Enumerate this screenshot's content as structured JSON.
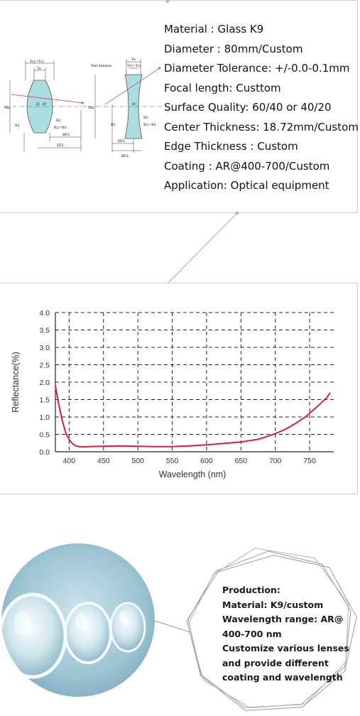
{
  "specs": [
    "Material : Glass K9",
    "Diameter : 80mm/Custom",
    "Diameter Tolerance: +/-0.0-0.1mm",
    "Focal length: Custtom",
    "Surface Quality: 60/40 or 40/20",
    "Center Thickness: 18.72mm/Custom",
    "Edge Thickness : Custom",
    "Coating : AR@400-700/Custom",
    "Application: Optical equipment"
  ],
  "diagram": {
    "labels": {
      "tc_te": "Tc(=Tc)",
      "te": "Te",
      "dia": "Dia",
      "r1": "R1",
      "r2": "R2",
      "r2_eq": "R2=R1",
      "h": "H",
      "h2": "H'",
      "bfl": "BFL",
      "efl": "EFL",
      "flat_annulus": "Flat Annulus",
      "te2": "Te",
      "tc_te2": "Tc(=Tc)",
      "dia2": "Dia",
      "r1b": "R1",
      "r2b": "R2",
      "r2_eq2": "R2=R1",
      "h2b": "H'",
      "efl2": "EFL",
      "bfl2": "BFL"
    }
  },
  "chart_data": {
    "type": "line",
    "title": "",
    "xlabel": "Wavelength (nm)",
    "ylabel": "Reflectance(%)",
    "xlim": [
      380,
      785
    ],
    "ylim": [
      0,
      4.0
    ],
    "x_ticks": [
      "400",
      "450",
      "500",
      "550",
      "600",
      "650",
      "700",
      "750"
    ],
    "y_ticks": [
      "0.0",
      "0.5",
      "1.0",
      "1.5",
      "2.0",
      "2.5",
      "3.0",
      "3.5",
      "4.0"
    ],
    "grid": true,
    "line_color": "#d81e3c",
    "series": [
      {
        "x": [
          380,
          385,
          390,
          395,
          400,
          405,
          410,
          415,
          420,
          430,
          450,
          475,
          500,
          525,
          550,
          575,
          600,
          625,
          650,
          675,
          690,
          700,
          715,
          730,
          745,
          760,
          775,
          780
        ],
        "values": [
          1.9,
          1.35,
          0.9,
          0.55,
          0.35,
          0.23,
          0.17,
          0.15,
          0.14,
          0.15,
          0.16,
          0.17,
          0.16,
          0.15,
          0.15,
          0.17,
          0.2,
          0.24,
          0.28,
          0.36,
          0.45,
          0.52,
          0.65,
          0.82,
          1.02,
          1.28,
          1.56,
          1.7
        ]
      }
    ]
  },
  "production": [
    "Production:",
    "Material: K9/custom",
    "Wavelength range: AR@",
    "400-700 nm",
    "Customize various lenses",
    "and provide different",
    "coating and wavelength"
  ]
}
